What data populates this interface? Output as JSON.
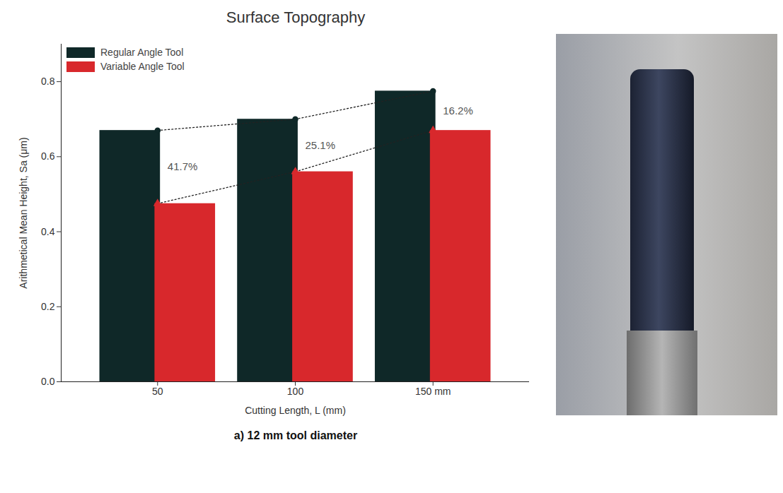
{
  "chart_data": {
    "type": "bar",
    "title": "Surface Topography",
    "caption": "a)    12 mm tool diameter",
    "x_label": "Cutting Length, L (mm)",
    "y_label": "Arithmetical Mean Height, Sa (μm)",
    "categories": [
      "50",
      "100",
      "150 mm"
    ],
    "series": [
      {
        "name": "Regular Angle Tool",
        "color": "#0f2828",
        "values": [
          0.67,
          0.7,
          0.775
        ],
        "marker": "circle",
        "line_style": "dotted"
      },
      {
        "name": "Variable Angle Tool",
        "color": "#d8282c",
        "values": [
          0.475,
          0.56,
          0.67
        ],
        "marker": "triangle",
        "line_style": "dotted"
      }
    ],
    "annotations": [
      "41.7%",
      "25.1%",
      "16.2%"
    ],
    "ylim": [
      0,
      0.9
    ],
    "yticks": [
      {
        "value": 0,
        "label": "0.0"
      },
      {
        "value": 0.2,
        "label": "0.2"
      },
      {
        "value": 0.4,
        "label": "0.4"
      },
      {
        "value": 0.6,
        "label": "0.6"
      },
      {
        "value": 0.8,
        "label": "0.8"
      }
    ],
    "grid": false,
    "legend": "top-left"
  }
}
